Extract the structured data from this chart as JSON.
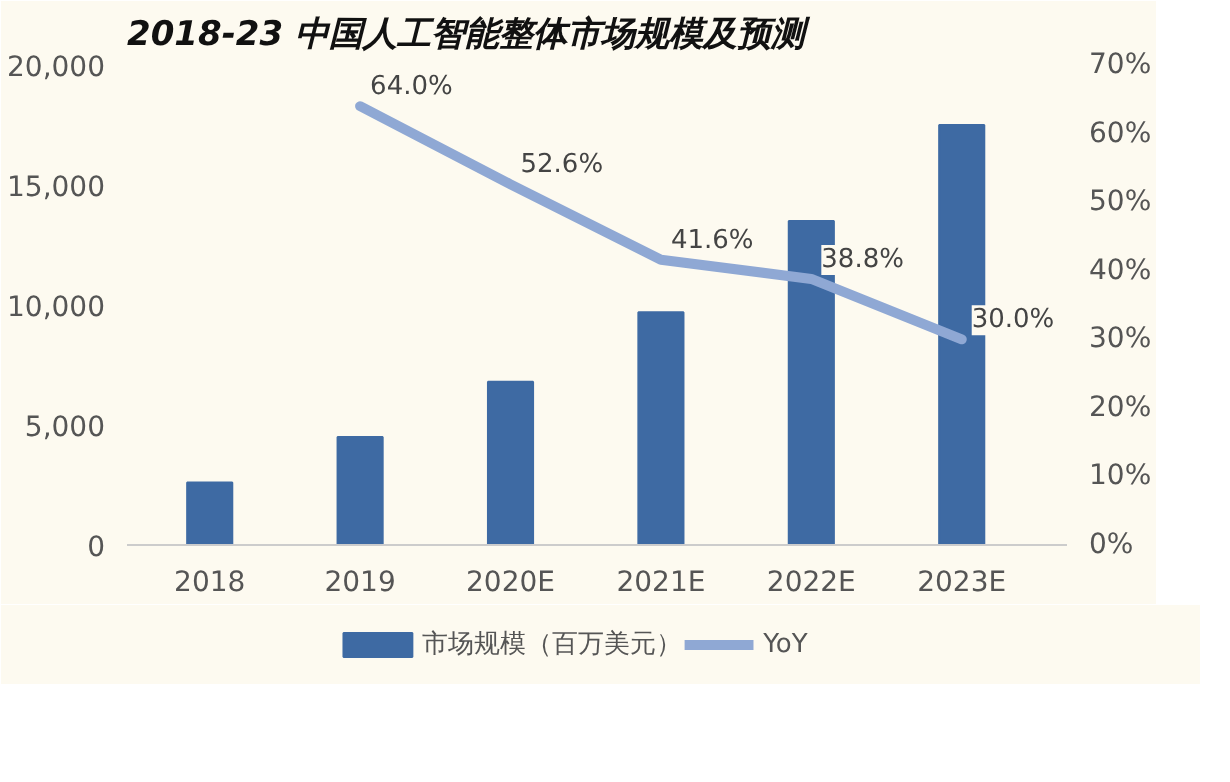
{
  "chart_data": {
    "type": "bar",
    "title": "2018-23 中国人工智能整体市场规模及预测",
    "categories": [
      "2018",
      "2019",
      "2020E",
      "2021E",
      "2022E",
      "2023E"
    ],
    "series": [
      {
        "name": "市场规模（百万美元）",
        "color": "#3e6aa3",
        "values": [
          2600,
          4500,
          6800,
          9700,
          13500,
          17500
        ]
      },
      {
        "name": "YoY",
        "type": "line",
        "axis": "y2",
        "color": "#8fa8d4",
        "values": [
          null,
          64.0,
          52.6,
          41.6,
          38.8,
          30.0
        ],
        "value_labels": [
          null,
          "64.0%",
          "52.6%",
          "41.6%",
          "38.8%",
          "30.0%"
        ]
      }
    ],
    "ylim": [
      0,
      20000
    ],
    "yticks": [
      {
        "value": 0,
        "label": "0"
      },
      {
        "value": 5000,
        "label": "5,000"
      },
      {
        "value": 10000,
        "label": "10,000"
      },
      {
        "value": 15000,
        "label": "15,000"
      },
      {
        "value": 20000,
        "label": "20,000"
      }
    ],
    "y2lim": [
      0,
      70
    ],
    "y2ticks": [
      {
        "value": 0,
        "label": "0%"
      },
      {
        "value": 10,
        "label": "10%"
      },
      {
        "value": 20,
        "label": "20%"
      },
      {
        "value": 30,
        "label": "30%"
      },
      {
        "value": 40,
        "label": "40%"
      },
      {
        "value": 50,
        "label": "50%"
      },
      {
        "value": 60,
        "label": "60%"
      },
      {
        "value": 70,
        "label": "70%"
      }
    ],
    "grid": false,
    "legend": "bottom"
  }
}
